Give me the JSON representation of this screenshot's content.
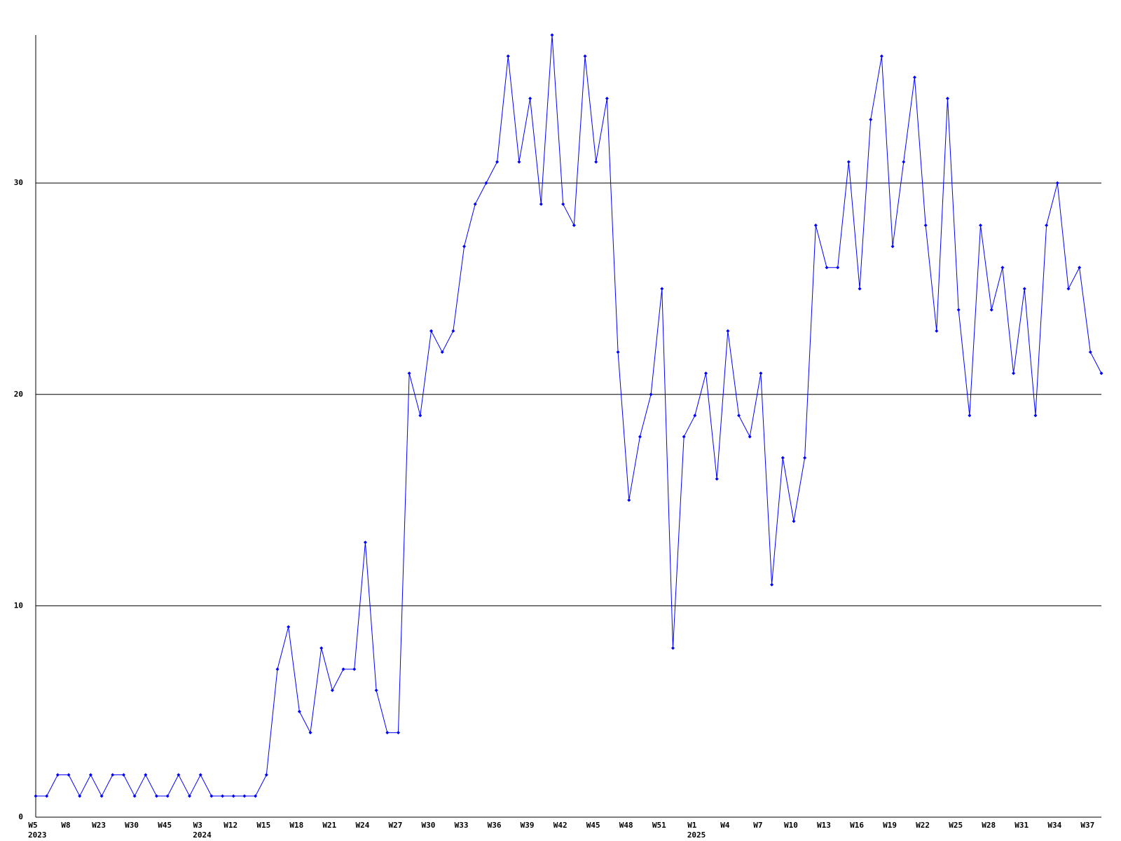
{
  "chart_data": {
    "type": "line",
    "categories": [
      "W5",
      null,
      null,
      "W8",
      null,
      null,
      "W23",
      null,
      null,
      "W30",
      null,
      null,
      "W45",
      null,
      null,
      "W3",
      null,
      null,
      "W12",
      null,
      null,
      "W15",
      null,
      null,
      "W18",
      null,
      null,
      "W21",
      null,
      null,
      "W24",
      null,
      null,
      "W27",
      null,
      null,
      "W30",
      null,
      null,
      "W33",
      null,
      null,
      "W36",
      null,
      null,
      "W39",
      null,
      null,
      "W42",
      null,
      null,
      "W45",
      null,
      null,
      "W48",
      null,
      null,
      "W51",
      null,
      null,
      "W1",
      null,
      null,
      "W4",
      null,
      null,
      "W7",
      null,
      null,
      "W10",
      null,
      null,
      "W13",
      null,
      null,
      "W16",
      null,
      null,
      "W19",
      null,
      null,
      "W22",
      null,
      null,
      "W25",
      null,
      null,
      "W28",
      null,
      null,
      "W31",
      null,
      null,
      "W34",
      null,
      null,
      "W37",
      null
    ],
    "year_labels": [
      "2023",
      null,
      null,
      null,
      null,
      null,
      null,
      null,
      null,
      null,
      null,
      null,
      null,
      null,
      null,
      "2024",
      null,
      null,
      null,
      null,
      null,
      null,
      null,
      null,
      null,
      null,
      null,
      null,
      null,
      null,
      null,
      null,
      null,
      null,
      null,
      null,
      null,
      null,
      null,
      null,
      null,
      null,
      null,
      null,
      null,
      null,
      null,
      null,
      null,
      null,
      null,
      null,
      null,
      null,
      null,
      null,
      null,
      null,
      null,
      null,
      "2025",
      null,
      null,
      null,
      null,
      null,
      null,
      null,
      null,
      null,
      null,
      null,
      null,
      null,
      null,
      null,
      null,
      null,
      null,
      null,
      null,
      null,
      null,
      null,
      null,
      null,
      null,
      null,
      null,
      null,
      null,
      null,
      null,
      null,
      null,
      null,
      null,
      null
    ],
    "values": [
      1,
      1,
      2,
      2,
      1,
      2,
      1,
      2,
      2,
      1,
      2,
      1,
      1,
      2,
      1,
      2,
      1,
      1,
      1,
      1,
      1,
      2,
      7,
      9,
      5,
      4,
      8,
      6,
      7,
      7,
      13,
      6,
      4,
      4,
      21,
      19,
      23,
      22,
      23,
      27,
      29,
      30,
      31,
      36,
      31,
      34,
      29,
      37,
      29,
      28,
      36,
      31,
      34,
      22,
      15,
      18,
      20,
      25,
      8,
      18,
      19,
      21,
      16,
      23,
      19,
      18,
      21,
      11,
      17,
      14,
      17,
      28,
      26,
      26,
      31,
      25,
      33,
      36,
      27,
      31,
      35,
      28,
      23,
      34,
      24,
      19,
      28,
      24,
      26,
      21,
      25,
      19,
      28,
      30,
      25,
      26,
      22,
      21
    ],
    "color": "#0000ff",
    "ylim": [
      0,
      37
    ],
    "yticks": [
      0,
      10,
      20,
      30
    ],
    "grid": true
  }
}
